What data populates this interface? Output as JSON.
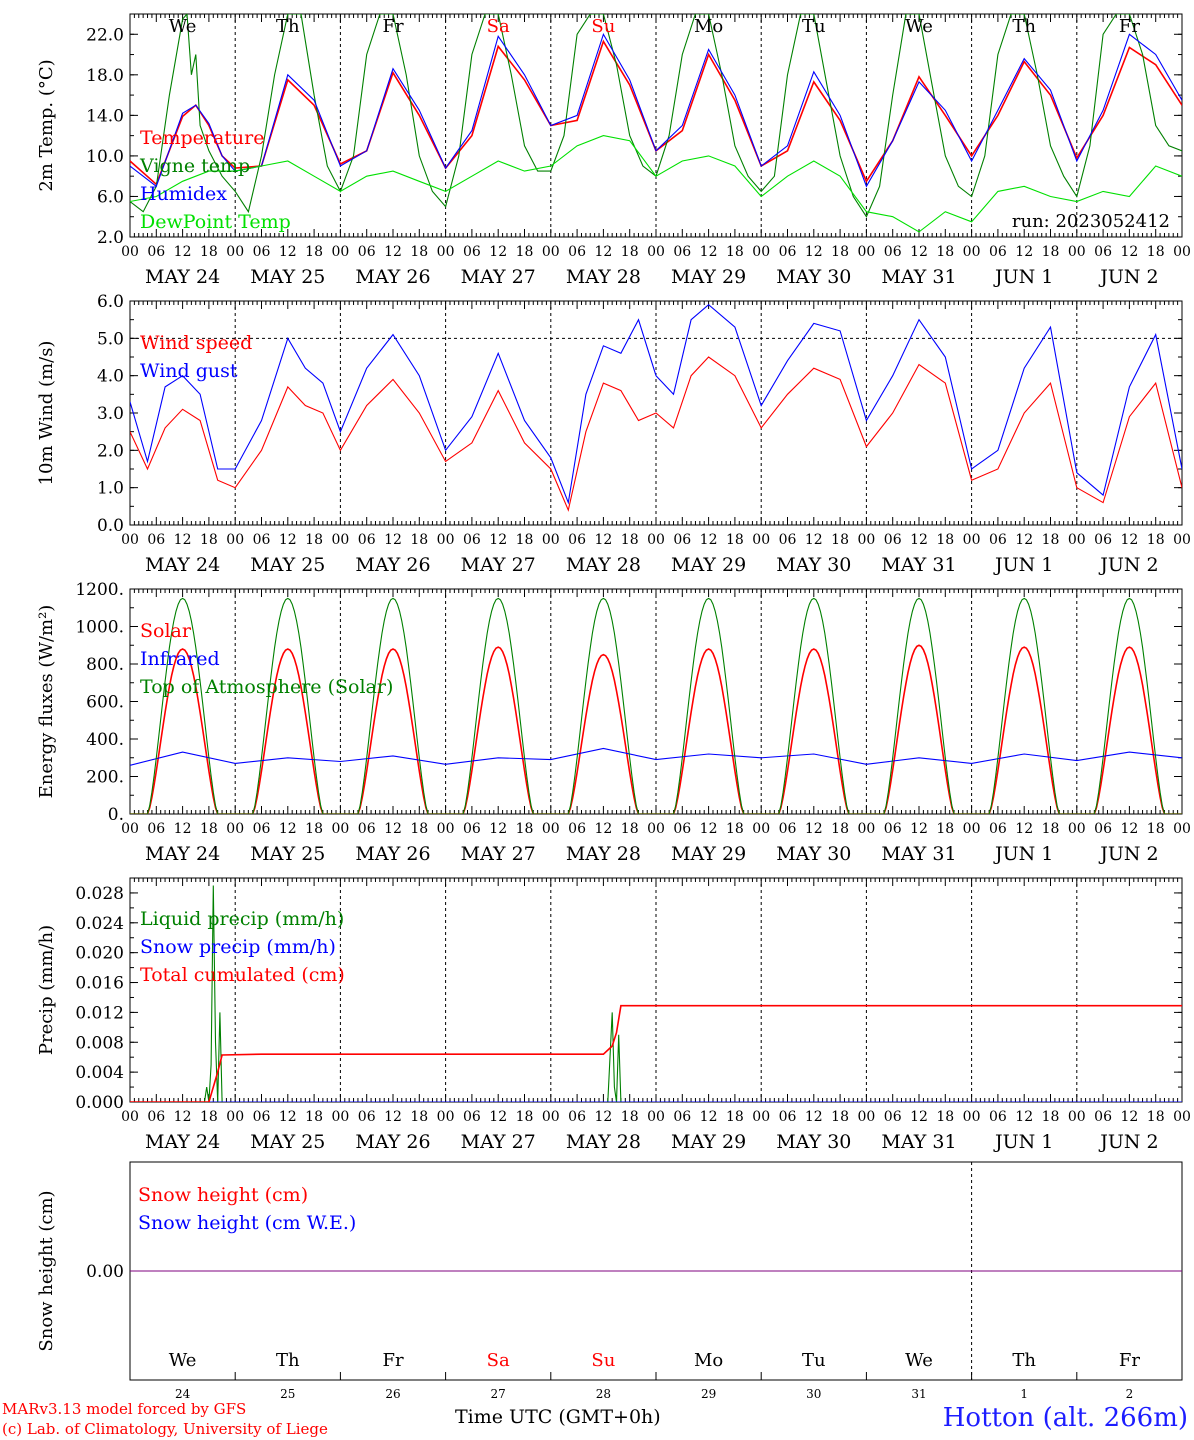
{
  "page": {
    "station": "Hotton (alt. 266m)",
    "credit_line1": "MARv3.13 model forced by GFS",
    "credit_line2": "(c) Lab. of Climatology, University of Liege",
    "x_axis_title": "Time UTC (GMT+0h)",
    "run": "run: 2023052412"
  },
  "colors": {
    "red": "#ff0000",
    "blue": "#0000ff",
    "green": "#008000",
    "lightgreen": "#00e000",
    "purple": "#7f007f",
    "weekend": "#ff0000",
    "weekday": "#000000"
  },
  "days": [
    {
      "weekday": "We",
      "date": "MAY 24",
      "num": "24",
      "weekend": false
    },
    {
      "weekday": "Th",
      "date": "MAY 25",
      "num": "25",
      "weekend": false
    },
    {
      "weekday": "Fr",
      "date": "MAY 26",
      "num": "26",
      "weekend": false
    },
    {
      "weekday": "Sa",
      "date": "MAY 27",
      "num": "27",
      "weekend": true
    },
    {
      "weekday": "Su",
      "date": "MAY 28",
      "num": "28",
      "weekend": true
    },
    {
      "weekday": "Mo",
      "date": "MAY 29",
      "num": "29",
      "weekend": false
    },
    {
      "weekday": "Tu",
      "date": "MAY 30",
      "num": "30",
      "weekend": false
    },
    {
      "weekday": "We",
      "date": "MAY 31",
      "num": "31",
      "weekend": false
    },
    {
      "weekday": "Th",
      "date": "JUN  1",
      "num": "1",
      "weekend": false
    },
    {
      "weekday": "Fr",
      "date": "JUN  2",
      "num": "2",
      "weekend": false
    }
  ],
  "hour_ticks": [
    "00",
    "06",
    "12",
    "18"
  ],
  "last_tick": "00",
  "chart_data": [
    {
      "id": "temperature",
      "type": "line",
      "ylabel": "2m Temp. (°C)",
      "ylim": [
        2,
        24
      ],
      "yticks": [
        "2.0",
        "6.0",
        "10.0",
        "14.0",
        "18.0",
        "22.0"
      ],
      "ytick_values": [
        2,
        6,
        10,
        14,
        18,
        22
      ],
      "x_unit": "hours since 2023-05-24 00 UTC",
      "xlim": [
        0,
        240
      ],
      "series": [
        {
          "name": "Temperature",
          "color": "#ff0000",
          "x": [
            0,
            6,
            12,
            15,
            18,
            21,
            24,
            30,
            36,
            42,
            48,
            54,
            60,
            66,
            72,
            78,
            84,
            90,
            96,
            102,
            108,
            114,
            120,
            126,
            132,
            138,
            144,
            150,
            156,
            162,
            168,
            174,
            180,
            186,
            192,
            198,
            204,
            210,
            216,
            222,
            228,
            234,
            240
          ],
          "values": [
            9.5,
            7.2,
            13.9,
            15.0,
            13.0,
            10.0,
            8.8,
            9.0,
            17.5,
            15.0,
            9.2,
            10.5,
            18.2,
            14.0,
            8.8,
            12.0,
            20.8,
            17.5,
            13.0,
            13.5,
            21.3,
            17.0,
            10.5,
            12.5,
            20.0,
            15.5,
            9.0,
            10.5,
            17.3,
            13.5,
            7.5,
            11.5,
            17.8,
            14.0,
            10.0,
            14.0,
            19.3,
            16.0,
            9.8,
            14.0,
            20.7,
            19.0,
            15.0
          ]
        },
        {
          "name": "Vigne temp",
          "color": "#008000",
          "x": [
            0,
            3,
            6,
            9,
            12,
            13,
            14,
            15,
            16,
            18,
            21,
            24,
            27,
            30,
            33,
            36,
            39,
            42,
            45,
            48,
            51,
            54,
            57,
            60,
            63,
            66,
            69,
            72,
            75,
            78,
            81,
            84,
            87,
            90,
            93,
            96,
            99,
            102,
            105,
            108,
            111,
            114,
            117,
            120,
            123,
            126,
            129,
            132,
            135,
            138,
            141,
            144,
            147,
            150,
            153,
            156,
            159,
            162,
            165,
            168,
            171,
            174,
            177,
            180,
            183,
            186,
            189,
            192,
            195,
            198,
            201,
            204,
            207,
            210,
            213,
            216,
            219,
            222,
            225,
            228,
            231,
            234,
            237,
            240
          ],
          "values": [
            5.5,
            4.5,
            7.0,
            16.0,
            23.5,
            24.0,
            18.0,
            20.0,
            13.0,
            10.5,
            8.0,
            6.5,
            4.5,
            10.0,
            18.0,
            24.0,
            24.0,
            16.0,
            9.0,
            6.5,
            10.0,
            20.0,
            24.0,
            24.0,
            18.0,
            10.0,
            6.5,
            5.0,
            10.0,
            20.0,
            24.0,
            24.0,
            18.0,
            11.0,
            8.5,
            8.5,
            12.0,
            22.0,
            24.0,
            24.0,
            19.0,
            12.0,
            9.0,
            8.0,
            12.0,
            20.0,
            24.0,
            24.0,
            18.0,
            11.0,
            8.0,
            6.5,
            8.0,
            18.0,
            24.0,
            24.0,
            17.0,
            10.0,
            6.0,
            4.0,
            7.0,
            16.0,
            24.0,
            24.0,
            17.0,
            10.0,
            7.0,
            6.0,
            10.0,
            20.0,
            24.0,
            24.0,
            18.0,
            11.0,
            8.0,
            6.0,
            11.0,
            22.0,
            24.0,
            24.0,
            20.0,
            13.0,
            11.0,
            10.5
          ]
        },
        {
          "name": "Humidex",
          "color": "#0000ff",
          "x": [
            0,
            6,
            12,
            15,
            18,
            21,
            24,
            30,
            36,
            42,
            48,
            54,
            60,
            66,
            72,
            78,
            84,
            90,
            96,
            102,
            108,
            114,
            120,
            126,
            132,
            138,
            144,
            150,
            156,
            162,
            168,
            174,
            180,
            186,
            192,
            198,
            204,
            210,
            216,
            222,
            228,
            234,
            240
          ],
          "values": [
            9.0,
            7.0,
            14.2,
            15.0,
            13.2,
            10.0,
            8.5,
            9.0,
            18.0,
            15.5,
            9.0,
            10.5,
            18.6,
            14.5,
            8.8,
            12.5,
            21.8,
            18.0,
            13.0,
            14.0,
            22.0,
            17.5,
            10.5,
            13.0,
            20.5,
            16.0,
            9.0,
            11.0,
            18.3,
            14.0,
            7.0,
            11.5,
            17.3,
            14.5,
            9.5,
            14.5,
            19.6,
            16.5,
            9.5,
            14.5,
            22.0,
            20.0,
            15.5
          ]
        },
        {
          "name": "DewPoint Temp",
          "color": "#00e000",
          "x": [
            0,
            6,
            12,
            18,
            24,
            30,
            36,
            42,
            48,
            54,
            60,
            66,
            72,
            78,
            84,
            90,
            96,
            102,
            108,
            114,
            120,
            126,
            132,
            138,
            144,
            150,
            156,
            162,
            168,
            174,
            180,
            186,
            192,
            198,
            204,
            210,
            216,
            222,
            228,
            234,
            240
          ],
          "values": [
            5.5,
            6.0,
            7.5,
            8.5,
            8.5,
            9.0,
            9.5,
            8.0,
            6.5,
            8.0,
            8.5,
            7.5,
            6.5,
            8.0,
            9.5,
            8.5,
            9.0,
            11.0,
            12.0,
            11.5,
            8.0,
            9.5,
            10.0,
            9.0,
            6.0,
            8.0,
            9.5,
            8.0,
            4.5,
            4.0,
            2.5,
            4.5,
            3.5,
            6.5,
            7.0,
            6.0,
            5.5,
            6.5,
            6.0,
            9.0,
            8.0
          ]
        }
      ]
    },
    {
      "id": "wind",
      "type": "line",
      "ylabel": "10m Wind (m/s)",
      "ylim": [
        0,
        6
      ],
      "yticks": [
        "0.0",
        "1.0",
        "2.0",
        "3.0",
        "4.0",
        "5.0",
        "6.0"
      ],
      "ytick_values": [
        0,
        1,
        2,
        3,
        4,
        5,
        6
      ],
      "reference_line": 5.0,
      "x_unit": "hours since 2023-05-24 00 UTC",
      "xlim": [
        0,
        240
      ],
      "series": [
        {
          "name": "Wind speed",
          "color": "#ff0000",
          "x": [
            0,
            4,
            8,
            12,
            16,
            20,
            24,
            30,
            36,
            40,
            44,
            48,
            54,
            60,
            66,
            72,
            78,
            84,
            90,
            96,
            100,
            104,
            108,
            112,
            116,
            120,
            124,
            128,
            132,
            138,
            144,
            150,
            156,
            162,
            168,
            174,
            180,
            186,
            192,
            198,
            204,
            210,
            216,
            222,
            228,
            234,
            240
          ],
          "values": [
            2.5,
            1.5,
            2.6,
            3.1,
            2.8,
            1.2,
            1.0,
            2.0,
            3.7,
            3.2,
            3.0,
            2.0,
            3.2,
            3.9,
            3.0,
            1.7,
            2.2,
            3.6,
            2.2,
            1.5,
            0.4,
            2.5,
            3.8,
            3.6,
            2.8,
            3.0,
            2.6,
            4.0,
            4.5,
            4.0,
            2.6,
            3.5,
            4.2,
            3.9,
            2.1,
            3.0,
            4.3,
            3.8,
            1.2,
            1.5,
            3.0,
            3.8,
            1.0,
            0.6,
            2.9,
            3.8,
            1.0
          ]
        },
        {
          "name": "Wind gust",
          "color": "#0000ff",
          "x": [
            0,
            4,
            8,
            12,
            16,
            20,
            24,
            30,
            36,
            40,
            44,
            48,
            54,
            60,
            66,
            72,
            78,
            84,
            90,
            96,
            100,
            104,
            108,
            112,
            116,
            120,
            124,
            128,
            132,
            138,
            144,
            150,
            156,
            162,
            168,
            174,
            180,
            186,
            192,
            198,
            204,
            210,
            216,
            222,
            228,
            234,
            240
          ],
          "values": [
            3.3,
            1.7,
            3.7,
            4.0,
            3.5,
            1.5,
            1.5,
            2.8,
            5.0,
            4.2,
            3.8,
            2.5,
            4.2,
            5.1,
            4.0,
            2.0,
            2.9,
            4.6,
            2.8,
            1.8,
            0.6,
            3.5,
            4.8,
            4.6,
            5.5,
            4.0,
            3.5,
            5.5,
            5.9,
            5.3,
            3.2,
            4.4,
            5.4,
            5.2,
            2.8,
            4.0,
            5.5,
            4.5,
            1.5,
            2.0,
            4.2,
            5.3,
            1.4,
            0.8,
            3.7,
            5.1,
            1.5
          ]
        }
      ]
    },
    {
      "id": "energy",
      "type": "line",
      "ylabel": "Energy fluxes (W/m²)",
      "ylim": [
        0,
        1200
      ],
      "yticks": [
        "0.",
        "200.",
        "400.",
        "600.",
        "800.",
        "1000.",
        "1200."
      ],
      "ytick_values": [
        0,
        200,
        400,
        600,
        800,
        1000,
        1200
      ],
      "x_unit": "hours since 2023-05-24 00 UTC",
      "xlim": [
        0,
        240
      ],
      "daylight_hours": [
        4,
        20
      ],
      "series": [
        {
          "name": "Solar",
          "color": "#ff0000",
          "daily_peak": [
            880,
            880,
            880,
            890,
            850,
            880,
            880,
            900,
            890,
            890
          ]
        },
        {
          "name": "Infrared",
          "color": "#0000ff",
          "x": [
            0,
            12,
            24,
            36,
            48,
            60,
            72,
            84,
            96,
            108,
            120,
            132,
            144,
            156,
            168,
            180,
            192,
            204,
            216,
            228,
            240
          ],
          "values": [
            260,
            330,
            270,
            300,
            280,
            310,
            265,
            300,
            290,
            350,
            290,
            320,
            300,
            320,
            265,
            300,
            270,
            320,
            285,
            330,
            300
          ]
        },
        {
          "name": "Top of Atmosphere (Solar)",
          "color": "#008000",
          "daily_peak": [
            1150,
            1150,
            1150,
            1150,
            1150,
            1150,
            1150,
            1150,
            1150,
            1150
          ]
        }
      ]
    },
    {
      "id": "precip",
      "type": "line",
      "ylabel": "Precip (mm/h)",
      "ylim": [
        0,
        0.03
      ],
      "yticks": [
        "0.000",
        "0.004",
        "0.008",
        "0.012",
        "0.016",
        "0.020",
        "0.024",
        "0.028"
      ],
      "ytick_values": [
        0,
        0.004,
        0.008,
        0.012,
        0.016,
        0.02,
        0.024,
        0.028
      ],
      "x_unit": "hours since 2023-05-24 00 UTC",
      "xlim": [
        0,
        240
      ],
      "series": [
        {
          "name": "Liquid precip (mm/h)",
          "color": "#008000",
          "x": [
            0,
            17,
            17.5,
            18,
            18.5,
            19,
            19.5,
            20,
            20.5,
            21,
            22,
            108,
            109,
            110,
            110.5,
            111,
            111.5,
            112,
            113,
            240
          ],
          "values": [
            0,
            0,
            0.002,
            0,
            0.005,
            0.029,
            0.008,
            0,
            0.012,
            0,
            0,
            0,
            0,
            0.012,
            0.002,
            0,
            0.009,
            0,
            0,
            0
          ]
        },
        {
          "name": "Snow precip (mm/h)",
          "color": "#0000ff",
          "x": [
            0,
            240
          ],
          "values": [
            0,
            0
          ]
        },
        {
          "name": "Total cumulated (cm)",
          "color": "#ff0000",
          "x": [
            0,
            18,
            20,
            21,
            30,
            108,
            110,
            111,
            112,
            240
          ],
          "values": [
            0,
            0,
            0.004,
            0.0063,
            0.0064,
            0.0064,
            0.0075,
            0.0093,
            0.0129,
            0.0129
          ]
        }
      ]
    },
    {
      "id": "snow",
      "type": "line",
      "ylabel": "Snow height (cm)",
      "yticks": [
        "0.00"
      ],
      "ytick_values": [
        0
      ],
      "x_unit": "hours since 2023-05-24 00 UTC",
      "xlim": [
        0,
        240
      ],
      "series": [
        {
          "name": "Snow height (cm)",
          "color": "#ff0000",
          "x": [
            0,
            240
          ],
          "values": [
            0,
            0
          ]
        },
        {
          "name": "Snow height (cm W.E.)",
          "color": "#0000ff",
          "x": [
            0,
            240
          ],
          "values": [
            0,
            0
          ]
        }
      ]
    }
  ]
}
